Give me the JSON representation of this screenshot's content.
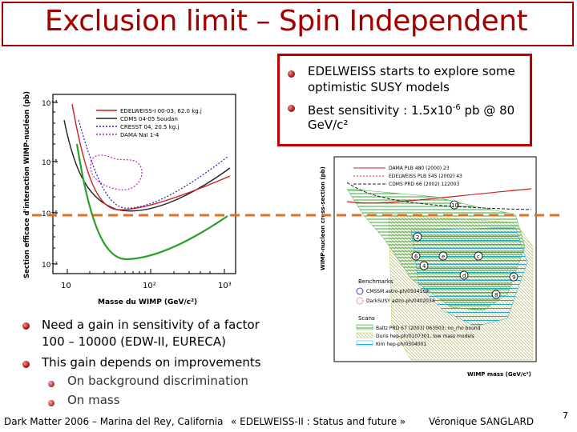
{
  "slide": {
    "title": "Exclusion limit – Spin Independent",
    "callout": {
      "bullets": [
        "EDELWEISS starts to explore some",
        "optimistic SUSY models",
        "Best sensitivity : 1.5x10",
        "-6",
        " pb @ 80",
        "GeV/c²"
      ]
    },
    "main_bullets": [
      "Need a gain in sensitivity of a factor",
      "100 – 10000 (EDW-II, EURECA)",
      "This gain depends on improvements"
    ],
    "sub_bullets": [
      "On background discrimination",
      "On mass"
    ],
    "footer": {
      "left": "Dark Matter 2006 – Marina del Rey, California",
      "center": "« EDELWEISS-II : Status and future »",
      "right": "Véronique SANGLARD",
      "page": "7"
    },
    "colors": {
      "title": "#a30000",
      "bullet": "#b02020",
      "dashed_line": "#e07020"
    }
  },
  "chart_data": [
    {
      "type": "line",
      "xlabel": "Masse du WIMP (GeV/c²)",
      "ylabel": "Section efficace d'interaction WIMP-nucléon (pb)",
      "x_scale": "log",
      "y_scale": "log",
      "xlim": [
        10,
        1000
      ],
      "ylim": [
        1e-07,
        0.0001
      ],
      "x_tick_labels": [
        "10",
        "10²",
        "10³"
      ],
      "y_tick_labels": [
        "10⁻⁴",
        "10⁻⁵",
        "10⁻⁶",
        "10⁻⁷"
      ],
      "legend": [
        {
          "name": "EDELWEISS-I 00-03, 62.0 kg.j",
          "color": "#cc2020"
        },
        {
          "name": "CDMS 04-05 Soudan",
          "color": "#202020"
        },
        {
          "name": "CRESST 04, 20.5 kg.j",
          "color": "#2020cc"
        },
        {
          "name": "DAMA NaI 1-4",
          "color": "#cc20cc"
        }
      ]
    },
    {
      "type": "area",
      "xlabel": "WIMP mass (GeV/c²)",
      "ylabel": "WIMP-nucleon cross-section (pb)",
      "x_scale": "log",
      "y_scale": "log",
      "xlim": [
        10,
        1000
      ],
      "legend_lines": [
        "DAMA PLB 480 (2000) 23",
        "EDELWEISS PLB 545 (2002) 43",
        "CDMS PRD 66 (2002) 122003"
      ],
      "legend_titles": [
        "Benchmarks",
        "Scans"
      ],
      "benchmarks": [
        "CMSSM astro-ph/0504169",
        "DarkSUSY astro-ph/0402034"
      ],
      "scans": [
        "Baltz PRD 67 (2003) 063503; no_rho bound",
        "Duris hep-ph/0107301, low mass models",
        "Kim hep-ph/0304001"
      ],
      "markers": [
        "10",
        "2",
        "6",
        "4",
        "e",
        "c",
        "d",
        "9",
        "8"
      ]
    }
  ]
}
